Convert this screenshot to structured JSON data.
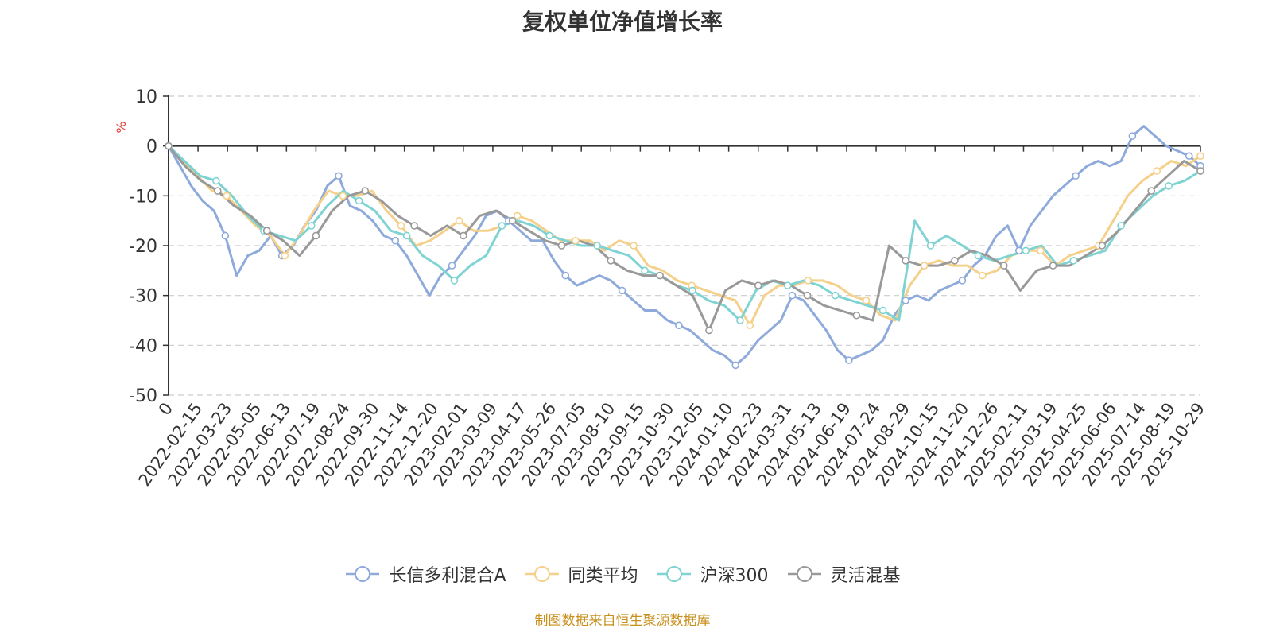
{
  "chart_data": {
    "type": "line",
    "title": "复权单位净值增长率",
    "ylabel": "%",
    "ylim": [
      -50,
      10
    ],
    "yticks": [
      10,
      0,
      -10,
      -20,
      -30,
      -40,
      -50
    ],
    "grid": true,
    "legend_position": "bottom",
    "x_tick_labels": [
      "0",
      "2022-02-15",
      "2022-03-23",
      "2022-05-05",
      "2022-06-13",
      "2022-07-19",
      "2022-08-24",
      "2022-09-30",
      "2022-11-14",
      "2022-12-20",
      "2023-02-01",
      "2023-03-09",
      "2023-04-17",
      "2023-05-26",
      "2023-07-05",
      "2023-08-10",
      "2023-09-15",
      "2023-10-30",
      "2023-12-05",
      "2024-01-10",
      "2024-02-23",
      "2024-03-31",
      "2024-05-13",
      "2024-06-19",
      "2024-07-24",
      "2024-08-29",
      "2024-10-15",
      "2024-11-20",
      "2024-12-26",
      "2025-02-11",
      "2025-03-19",
      "2025-04-25",
      "2025-06-06",
      "2025-07-14",
      "2025-08-19",
      "2025-10-29"
    ],
    "series": [
      {
        "name": "长信多利混合A",
        "color": "#8eaadb",
        "values": [
          0,
          -4,
          -8,
          -11,
          -13,
          -18,
          -26,
          -22,
          -21,
          -18,
          -22,
          -20,
          -16,
          -13,
          -8,
          -6,
          -12,
          -13,
          -15,
          -18,
          -19,
          -22,
          -26,
          -30,
          -26,
          -24,
          -21,
          -18,
          -14,
          -13,
          -15,
          -17,
          -19,
          -19,
          -23,
          -26,
          -28,
          -27,
          -26,
          -27,
          -29,
          -31,
          -33,
          -33,
          -35,
          -36,
          -37,
          -39,
          -41,
          -42,
          -44,
          -42,
          -39,
          -37,
          -35,
          -30,
          -31,
          -34,
          -37,
          -41,
          -43,
          -42,
          -41,
          -39,
          -34,
          -31,
          -30,
          -31,
          -29,
          -28,
          -27,
          -24,
          -22,
          -18,
          -16,
          -21,
          -16,
          -13,
          -10,
          -8,
          -6,
          -4,
          -3,
          -4,
          -3,
          2,
          4,
          2,
          0,
          -1,
          -2,
          -4
        ]
      },
      {
        "name": "同类平均",
        "color": "#f5d08a",
        "values": [
          0,
          -3,
          -6,
          -9,
          -10,
          -13,
          -16,
          -18,
          -22,
          -18,
          -13,
          -9,
          -10,
          -10,
          -9,
          -13,
          -16,
          -20,
          -19,
          -17,
          -15,
          -17,
          -17,
          -16,
          -14,
          -15,
          -17,
          -19,
          -19,
          -19,
          -21,
          -19,
          -20,
          -24,
          -25,
          -27,
          -28,
          -29,
          -30,
          -31,
          -36,
          -30,
          -28,
          -28,
          -27,
          -27,
          -28,
          -30,
          -31,
          -34,
          -35,
          -28,
          -24,
          -23,
          -24,
          -24,
          -26,
          -25,
          -22,
          -21,
          -21,
          -24,
          -22,
          -21,
          -20,
          -15,
          -10,
          -7,
          -5,
          -3,
          -4,
          -2
        ]
      },
      {
        "name": "沪深300",
        "color": "#7fd3d3",
        "values": [
          0,
          -3,
          -6,
          -7,
          -10,
          -14,
          -17,
          -18,
          -19,
          -16,
          -12,
          -9,
          -11,
          -13,
          -17,
          -18,
          -22,
          -24,
          -27,
          -24,
          -22,
          -16,
          -15,
          -16,
          -18,
          -19,
          -20,
          -20,
          -21,
          -22,
          -25,
          -26,
          -28,
          -29,
          -31,
          -32,
          -35,
          -29,
          -27,
          -28,
          -27,
          -28,
          -30,
          -31,
          -32,
          -33,
          -35,
          -15,
          -20,
          -18,
          -20,
          -22,
          -23,
          -22,
          -21,
          -20,
          -24,
          -23,
          -22,
          -21,
          -16,
          -13,
          -10,
          -8,
          -7,
          -5
        ]
      },
      {
        "name": "灵活混基",
        "color": "#999999",
        "values": [
          0,
          -4,
          -7,
          -9,
          -12,
          -14,
          -17,
          -19,
          -22,
          -18,
          -13,
          -10,
          -9,
          -11,
          -14,
          -16,
          -18,
          -16,
          -18,
          -14,
          -13,
          -15,
          -17,
          -19,
          -20,
          -19,
          -20,
          -23,
          -25,
          -26,
          -26,
          -28,
          -30,
          -37,
          -29,
          -27,
          -28,
          -27,
          -28,
          -30,
          -32,
          -33,
          -34,
          -35,
          -20,
          -23,
          -24,
          -24,
          -23,
          -21,
          -22,
          -24,
          -29,
          -25,
          -24,
          -24,
          -22,
          -20,
          -17,
          -13,
          -9,
          -6,
          -3,
          -5
        ]
      }
    ]
  },
  "source_note": "制图数据来自恒生聚源数据库"
}
